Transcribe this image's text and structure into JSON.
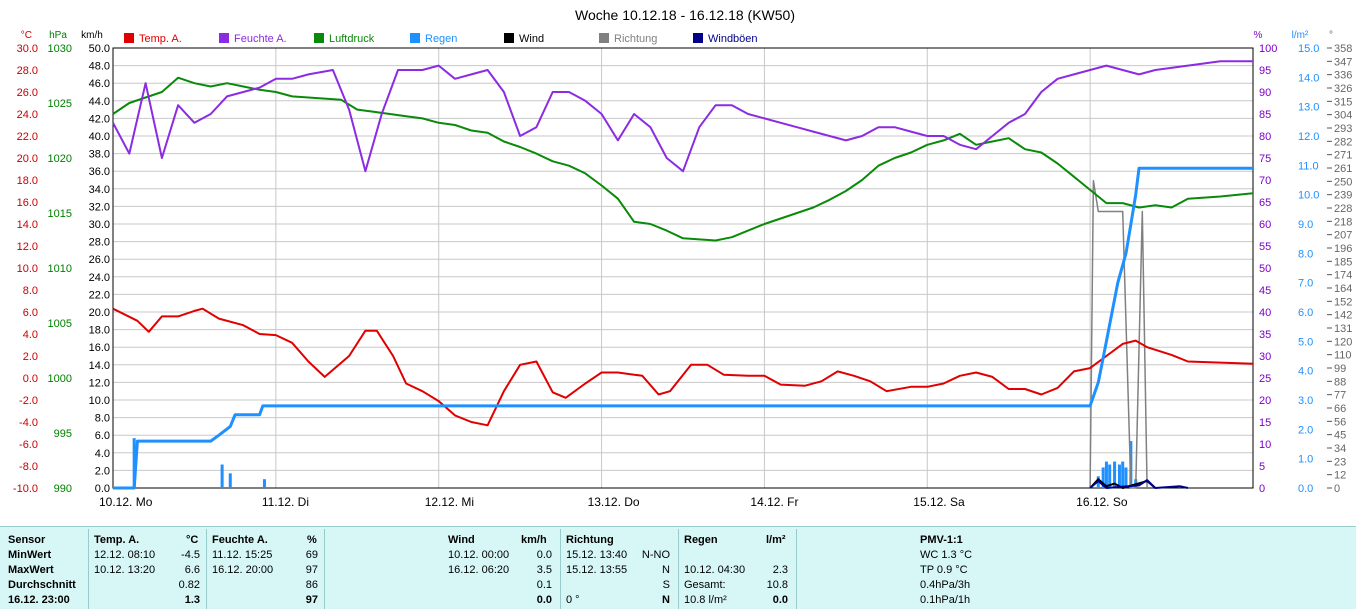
{
  "chart_data": {
    "type": "line",
    "title": "Woche 10.12.18 - 16.12.18 (KW50)",
    "x_labels": [
      "10.12. Mo",
      "11.12. Di",
      "12.12. Mi",
      "13.12. Do",
      "14.12. Fr",
      "15.12. Sa",
      "16.12. So"
    ],
    "xlim": [
      0,
      7
    ],
    "axes": {
      "temp": {
        "unit": "°C",
        "color": "#cc0000",
        "min": -10,
        "max": 30,
        "step": 2,
        "decimals": 1
      },
      "press": {
        "unit": "hPa",
        "color": "#008000",
        "min": 990,
        "max": 1030,
        "ticks": [
          990,
          995,
          1000,
          1005,
          1010,
          1015,
          1020,
          1025,
          1030
        ]
      },
      "wind": {
        "unit": "km/h",
        "color": "#000000",
        "min": 0,
        "max": 50,
        "step": 2,
        "decimals": 1
      },
      "hum": {
        "unit": "%",
        "color": "#7b00c8",
        "min": 0,
        "max": 100,
        "step": 5
      },
      "rain": {
        "unit": "l/m²",
        "color": "#1e90ff",
        "min": 0,
        "max": 15,
        "step": 1,
        "decimals": 1
      },
      "dir": {
        "unit": "°",
        "color": "#666666",
        "ticks": [
          0,
          12,
          23,
          34,
          45,
          56,
          66,
          77,
          88,
          99,
          110,
          120,
          131,
          142,
          152,
          164,
          174,
          185,
          196,
          207,
          218,
          228,
          239,
          250,
          261,
          271,
          282,
          293,
          304,
          315,
          326,
          336,
          347,
          358
        ]
      }
    },
    "legend": [
      {
        "name": "Temp. A.",
        "color": "#e00000"
      },
      {
        "name": "Feuchte A.",
        "color": "#8b2be2"
      },
      {
        "name": "Luftdruck",
        "color": "#0a8a0a"
      },
      {
        "name": "Regen",
        "color": "#1e90ff"
      },
      {
        "name": "Wind",
        "color": "#000000"
      },
      {
        "name": "Richtung",
        "color": "#808080"
      },
      {
        "name": "Windböen",
        "color": "#00008b"
      }
    ],
    "series": {
      "temp": [
        [
          0,
          6.3
        ],
        [
          0.15,
          5.2
        ],
        [
          0.22,
          4.2
        ],
        [
          0.3,
          5.6
        ],
        [
          0.4,
          5.6
        ],
        [
          0.5,
          6.1
        ],
        [
          0.55,
          6.3
        ],
        [
          0.65,
          5.4
        ],
        [
          0.8,
          4.8
        ],
        [
          0.9,
          4.0
        ],
        [
          1.0,
          3.9
        ],
        [
          1.1,
          3.2
        ],
        [
          1.2,
          1.5
        ],
        [
          1.3,
          0.1
        ],
        [
          1.45,
          2.0
        ],
        [
          1.55,
          4.3
        ],
        [
          1.62,
          4.3
        ],
        [
          1.72,
          2.0
        ],
        [
          1.8,
          -0.5
        ],
        [
          1.9,
          -1.2
        ],
        [
          2.0,
          -2.1
        ],
        [
          2.1,
          -3.4
        ],
        [
          2.2,
          -4.0
        ],
        [
          2.3,
          -4.3
        ],
        [
          2.4,
          -1.2
        ],
        [
          2.5,
          1.2
        ],
        [
          2.6,
          1.5
        ],
        [
          2.7,
          -1.3
        ],
        [
          2.78,
          -1.8
        ],
        [
          2.9,
          -0.5
        ],
        [
          3.0,
          0.5
        ],
        [
          3.1,
          0.5
        ],
        [
          3.25,
          0.2
        ],
        [
          3.35,
          -1.5
        ],
        [
          3.42,
          -1.2
        ],
        [
          3.55,
          1.2
        ],
        [
          3.65,
          1.2
        ],
        [
          3.75,
          0.3
        ],
        [
          3.9,
          0.2
        ],
        [
          4.0,
          0.2
        ],
        [
          4.1,
          -0.6
        ],
        [
          4.25,
          -0.7
        ],
        [
          4.35,
          -0.3
        ],
        [
          4.45,
          0.6
        ],
        [
          4.55,
          0.2
        ],
        [
          4.65,
          -0.3
        ],
        [
          4.75,
          -1.2
        ],
        [
          4.9,
          -0.8
        ],
        [
          5.0,
          -0.8
        ],
        [
          5.1,
          -0.5
        ],
        [
          5.2,
          0.2
        ],
        [
          5.3,
          0.5
        ],
        [
          5.4,
          0.1
        ],
        [
          5.5,
          -1.0
        ],
        [
          5.6,
          -1.0
        ],
        [
          5.7,
          -1.5
        ],
        [
          5.8,
          -0.9
        ],
        [
          5.9,
          0.6
        ],
        [
          6.0,
          0.9
        ],
        [
          6.1,
          2.0
        ],
        [
          6.2,
          3.1
        ],
        [
          6.28,
          3.4
        ],
        [
          6.35,
          2.8
        ],
        [
          6.5,
          2.1
        ],
        [
          6.6,
          1.5
        ],
        [
          7.0,
          1.3
        ]
      ],
      "hum": [
        [
          0,
          83
        ],
        [
          0.1,
          76
        ],
        [
          0.2,
          92
        ],
        [
          0.3,
          75
        ],
        [
          0.4,
          87
        ],
        [
          0.5,
          83
        ],
        [
          0.6,
          85
        ],
        [
          0.7,
          89
        ],
        [
          0.8,
          90
        ],
        [
          0.9,
          91
        ],
        [
          1.0,
          93
        ],
        [
          1.1,
          93
        ],
        [
          1.2,
          94
        ],
        [
          1.35,
          95
        ],
        [
          1.45,
          86
        ],
        [
          1.55,
          72
        ],
        [
          1.65,
          85
        ],
        [
          1.75,
          95
        ],
        [
          1.9,
          95
        ],
        [
          2.0,
          96
        ],
        [
          2.1,
          93
        ],
        [
          2.2,
          94
        ],
        [
          2.3,
          95
        ],
        [
          2.4,
          90
        ],
        [
          2.5,
          80
        ],
        [
          2.6,
          82
        ],
        [
          2.7,
          90
        ],
        [
          2.8,
          90
        ],
        [
          2.9,
          88
        ],
        [
          3.0,
          85
        ],
        [
          3.1,
          79
        ],
        [
          3.2,
          85
        ],
        [
          3.3,
          82
        ],
        [
          3.4,
          75
        ],
        [
          3.5,
          72
        ],
        [
          3.6,
          82
        ],
        [
          3.7,
          87
        ],
        [
          3.8,
          87
        ],
        [
          3.9,
          85
        ],
        [
          4.0,
          84
        ],
        [
          4.1,
          83
        ],
        [
          4.2,
          82
        ],
        [
          4.3,
          81
        ],
        [
          4.4,
          80
        ],
        [
          4.5,
          79
        ],
        [
          4.6,
          80
        ],
        [
          4.7,
          82
        ],
        [
          4.8,
          82
        ],
        [
          4.9,
          81
        ],
        [
          5.0,
          80
        ],
        [
          5.1,
          80
        ],
        [
          5.2,
          78
        ],
        [
          5.3,
          77
        ],
        [
          5.4,
          80
        ],
        [
          5.5,
          83
        ],
        [
          5.6,
          85
        ],
        [
          5.7,
          90
        ],
        [
          5.8,
          93
        ],
        [
          5.9,
          94
        ],
        [
          6.0,
          95
        ],
        [
          6.1,
          96
        ],
        [
          6.2,
          95
        ],
        [
          6.3,
          94
        ],
        [
          6.4,
          95
        ],
        [
          6.6,
          96
        ],
        [
          6.8,
          97
        ],
        [
          7.0,
          97
        ]
      ],
      "press": [
        [
          0,
          1024
        ],
        [
          0.1,
          1025
        ],
        [
          0.2,
          1025.5
        ],
        [
          0.3,
          1026
        ],
        [
          0.4,
          1027.3
        ],
        [
          0.5,
          1026.8
        ],
        [
          0.6,
          1026.5
        ],
        [
          0.7,
          1026.8
        ],
        [
          0.8,
          1026.5
        ],
        [
          0.9,
          1026.2
        ],
        [
          1.0,
          1026.0
        ],
        [
          1.1,
          1025.6
        ],
        [
          1.2,
          1025.5
        ],
        [
          1.3,
          1025.4
        ],
        [
          1.4,
          1025.3
        ],
        [
          1.5,
          1024.4
        ],
        [
          1.6,
          1024.2
        ],
        [
          1.7,
          1024.0
        ],
        [
          1.8,
          1023.8
        ],
        [
          1.9,
          1023.6
        ],
        [
          2.0,
          1023.2
        ],
        [
          2.1,
          1023.0
        ],
        [
          2.2,
          1022.5
        ],
        [
          2.3,
          1022.3
        ],
        [
          2.4,
          1021.5
        ],
        [
          2.5,
          1021.0
        ],
        [
          2.6,
          1020.4
        ],
        [
          2.7,
          1019.7
        ],
        [
          2.8,
          1019.3
        ],
        [
          2.9,
          1018.6
        ],
        [
          3.0,
          1017.5
        ],
        [
          3.1,
          1016.3
        ],
        [
          3.2,
          1014.2
        ],
        [
          3.3,
          1014.0
        ],
        [
          3.4,
          1013.4
        ],
        [
          3.5,
          1012.7
        ],
        [
          3.6,
          1012.6
        ],
        [
          3.7,
          1012.5
        ],
        [
          3.8,
          1012.8
        ],
        [
          3.9,
          1013.4
        ],
        [
          4.0,
          1014.0
        ],
        [
          4.1,
          1014.5
        ],
        [
          4.2,
          1015.0
        ],
        [
          4.3,
          1015.5
        ],
        [
          4.4,
          1016.2
        ],
        [
          4.5,
          1017.0
        ],
        [
          4.6,
          1018.0
        ],
        [
          4.7,
          1019.3
        ],
        [
          4.8,
          1020.0
        ],
        [
          4.9,
          1020.5
        ],
        [
          5.0,
          1021.2
        ],
        [
          5.1,
          1021.6
        ],
        [
          5.2,
          1022.2
        ],
        [
          5.3,
          1021.2
        ],
        [
          5.4,
          1021.5
        ],
        [
          5.5,
          1021.8
        ],
        [
          5.6,
          1020.8
        ],
        [
          5.7,
          1020.5
        ],
        [
          5.8,
          1019.5
        ],
        [
          5.9,
          1018.3
        ],
        [
          6.0,
          1017.1
        ],
        [
          6.1,
          1015.9
        ],
        [
          6.2,
          1015.9
        ],
        [
          6.3,
          1015.5
        ],
        [
          6.4,
          1015.7
        ],
        [
          6.5,
          1015.5
        ],
        [
          6.6,
          1016.3
        ],
        [
          6.8,
          1016.5
        ],
        [
          7.0,
          1016.8
        ]
      ],
      "rain": [
        [
          0,
          0
        ],
        [
          0.13,
          0
        ],
        [
          0.15,
          1.6
        ],
        [
          0.6,
          1.6
        ],
        [
          0.65,
          1.8
        ],
        [
          0.72,
          2.1
        ],
        [
          0.75,
          2.5
        ],
        [
          0.9,
          2.5
        ],
        [
          0.92,
          2.8
        ],
        [
          0.95,
          2.8
        ],
        [
          6.0,
          2.8
        ],
        [
          6.05,
          3.6
        ],
        [
          6.1,
          5.0
        ],
        [
          6.17,
          7.0
        ],
        [
          6.22,
          8.0
        ],
        [
          6.25,
          9.0
        ],
        [
          6.28,
          10.0
        ],
        [
          6.3,
          10.9
        ],
        [
          7.0,
          10.9
        ]
      ],
      "dir": [
        [
          6.0,
          0
        ],
        [
          6.02,
          250
        ],
        [
          6.05,
          225
        ],
        [
          6.2,
          225
        ],
        [
          6.25,
          0
        ],
        [
          6.28,
          0
        ],
        [
          6.32,
          225
        ],
        [
          6.35,
          0
        ]
      ],
      "wind": [
        [
          6.0,
          0
        ],
        [
          6.05,
          1.0
        ],
        [
          6.1,
          0.2
        ],
        [
          6.15,
          0.5
        ],
        [
          6.2,
          0
        ],
        [
          6.35,
          0.8
        ],
        [
          6.4,
          0
        ]
      ],
      "gusts": [
        [
          6.0,
          0
        ],
        [
          6.05,
          0.8
        ],
        [
          6.1,
          0
        ],
        [
          6.3,
          0.3
        ],
        [
          6.35,
          0.9
        ],
        [
          6.4,
          0
        ],
        [
          6.55,
          0.2
        ],
        [
          6.6,
          0
        ]
      ],
      "rain_bars": [
        [
          0.13,
          1.7
        ],
        [
          0.67,
          0.8
        ],
        [
          0.72,
          0.5
        ],
        [
          0.93,
          0.3
        ],
        [
          6.05,
          0.4
        ],
        [
          6.08,
          0.7
        ],
        [
          6.1,
          0.9
        ],
        [
          6.12,
          0.8
        ],
        [
          6.15,
          0.9
        ],
        [
          6.18,
          0.8
        ],
        [
          6.2,
          0.9
        ],
        [
          6.22,
          0.7
        ],
        [
          6.25,
          1.6
        ],
        [
          6.28,
          0.3
        ]
      ]
    }
  },
  "stats": {
    "col_sensor": {
      "header": "Sensor",
      "rows": [
        "MinWert",
        "MaxWert",
        "Durchschnitt",
        "16.12. 23:00"
      ]
    },
    "col_temp": {
      "header": "Temp. A.",
      "unit": "°C",
      "times": [
        "12.12.  08:10",
        "10.12.  13:20",
        "",
        ""
      ],
      "values": [
        "-4.5",
        "6.6",
        "0.82",
        "1.3"
      ]
    },
    "col_hum": {
      "header": "Feuchte A.",
      "unit": "%",
      "times": [
        "11.12.  15:25",
        "16.12.  20:00",
        "",
        ""
      ],
      "values": [
        "69",
        "97",
        "86",
        "97"
      ]
    },
    "col_wind": {
      "header": "Wind",
      "unit": "km/h",
      "times": [
        "10.12.  00:00",
        "16.12.  06:20",
        "",
        ""
      ],
      "values": [
        "0.0",
        "3.5",
        "0.1",
        "0.0"
      ]
    },
    "col_dir": {
      "header": "Richtung",
      "times": [
        "15.12.  13:40",
        "15.12.  13:55",
        "",
        "0 °"
      ],
      "values": [
        "N-NO",
        "N",
        "S",
        "N"
      ]
    },
    "col_rain": {
      "header": "Regen",
      "unit": "l/m²",
      "times": [
        "",
        "10.12.  04:30",
        "Gesamt:",
        "10.8 l/m²"
      ],
      "values": [
        "",
        "2.3",
        "10.8",
        "0.0"
      ]
    },
    "col_pmv": {
      "header": "PMV-1:1",
      "rows": [
        "WC 1.3 °C",
        "TP 0.9 °C",
        "0.4hPa/3h",
        "0.1hPa/1h"
      ]
    }
  }
}
